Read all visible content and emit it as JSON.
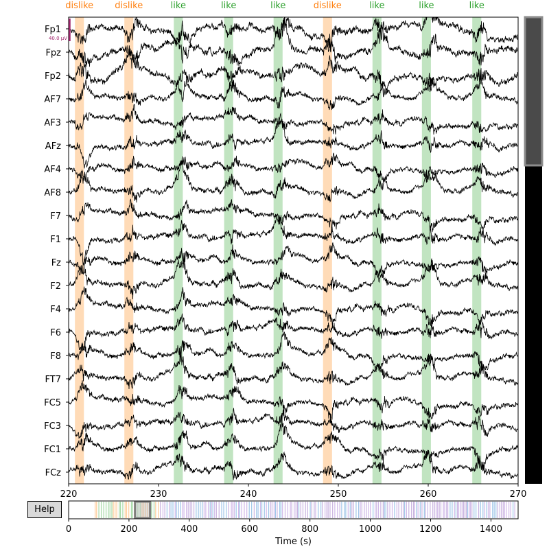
{
  "help_label": "Help",
  "scale_bar_label": "40.0 µV",
  "scale_bar_color": "#a0246c",
  "channels": [
    "Fp1",
    "Fpz",
    "Fp2",
    "AF7",
    "AF3",
    "AFz",
    "AF4",
    "AF8",
    "F7",
    "F1",
    "Fz",
    "F2",
    "F4",
    "F6",
    "F8",
    "FT7",
    "FC5",
    "FC3",
    "FC1",
    "FCz"
  ],
  "time_window": {
    "start": 220,
    "end": 270
  },
  "time_ticks": [
    220,
    230,
    240,
    250,
    260,
    270
  ],
  "annotations": [
    {
      "label": "dislike",
      "start": 220.7,
      "end": 221.7
    },
    {
      "label": "dislike",
      "start": 226.2,
      "end": 227.2
    },
    {
      "label": "like",
      "start": 231.7,
      "end": 232.7
    },
    {
      "label": "like",
      "start": 237.3,
      "end": 238.3
    },
    {
      "label": "like",
      "start": 242.8,
      "end": 243.8
    },
    {
      "label": "dislike",
      "start": 248.3,
      "end": 249.3
    },
    {
      "label": "like",
      "start": 253.8,
      "end": 254.8
    },
    {
      "label": "like",
      "start": 259.3,
      "end": 260.3
    },
    {
      "label": "like",
      "start": 264.9,
      "end": 265.9
    }
  ],
  "annotation_colors": {
    "dislike": {
      "text": "#ff7f0e",
      "fill": "#ffcc99"
    },
    "like": {
      "text": "#2ca02c",
      "fill": "#a6d9a6"
    }
  },
  "overview": {
    "xticks": [
      0,
      200,
      400,
      600,
      800,
      1000,
      1200,
      1400
    ],
    "xlim": [
      0,
      1490
    ],
    "xlabel": "Time (s)",
    "view_window": [
      220,
      270
    ]
  },
  "vscroll": {
    "visible_fraction": 0.3226
  }
}
